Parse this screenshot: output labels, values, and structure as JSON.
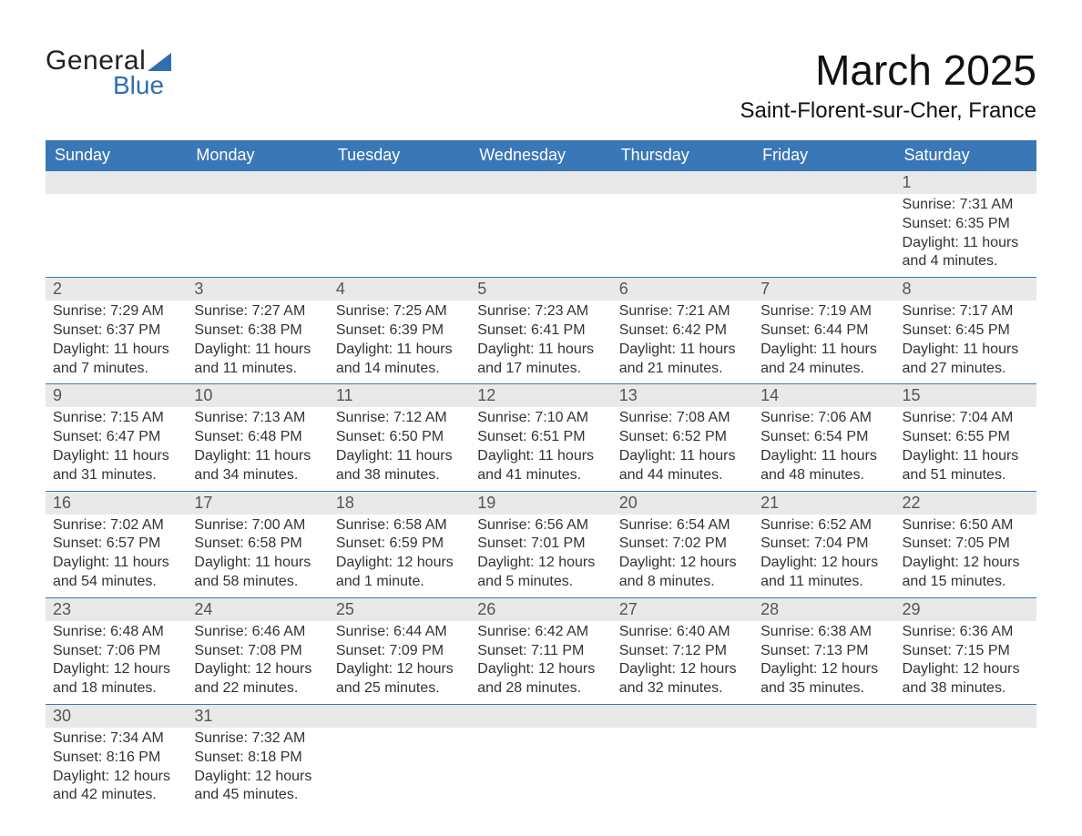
{
  "logo": {
    "word1": "General",
    "word2": "Blue",
    "accent_color": "#2f6fb0"
  },
  "title": "March 2025",
  "location": "Saint-Florent-sur-Cher, France",
  "header_bg": "#3a77b7",
  "header_text": "#ffffff",
  "daynum_bg": "#e9e9e9",
  "border_color": "#3a77b7",
  "weekdays": [
    "Sunday",
    "Monday",
    "Tuesday",
    "Wednesday",
    "Thursday",
    "Friday",
    "Saturday"
  ],
  "weeks": [
    [
      null,
      null,
      null,
      null,
      null,
      null,
      {
        "n": "1",
        "sunrise": "7:31 AM",
        "sunset": "6:35 PM",
        "daylight": "11 hours and 4 minutes."
      }
    ],
    [
      {
        "n": "2",
        "sunrise": "7:29 AM",
        "sunset": "6:37 PM",
        "daylight": "11 hours and 7 minutes."
      },
      {
        "n": "3",
        "sunrise": "7:27 AM",
        "sunset": "6:38 PM",
        "daylight": "11 hours and 11 minutes."
      },
      {
        "n": "4",
        "sunrise": "7:25 AM",
        "sunset": "6:39 PM",
        "daylight": "11 hours and 14 minutes."
      },
      {
        "n": "5",
        "sunrise": "7:23 AM",
        "sunset": "6:41 PM",
        "daylight": "11 hours and 17 minutes."
      },
      {
        "n": "6",
        "sunrise": "7:21 AM",
        "sunset": "6:42 PM",
        "daylight": "11 hours and 21 minutes."
      },
      {
        "n": "7",
        "sunrise": "7:19 AM",
        "sunset": "6:44 PM",
        "daylight": "11 hours and 24 minutes."
      },
      {
        "n": "8",
        "sunrise": "7:17 AM",
        "sunset": "6:45 PM",
        "daylight": "11 hours and 27 minutes."
      }
    ],
    [
      {
        "n": "9",
        "sunrise": "7:15 AM",
        "sunset": "6:47 PM",
        "daylight": "11 hours and 31 minutes."
      },
      {
        "n": "10",
        "sunrise": "7:13 AM",
        "sunset": "6:48 PM",
        "daylight": "11 hours and 34 minutes."
      },
      {
        "n": "11",
        "sunrise": "7:12 AM",
        "sunset": "6:50 PM",
        "daylight": "11 hours and 38 minutes."
      },
      {
        "n": "12",
        "sunrise": "7:10 AM",
        "sunset": "6:51 PM",
        "daylight": "11 hours and 41 minutes."
      },
      {
        "n": "13",
        "sunrise": "7:08 AM",
        "sunset": "6:52 PM",
        "daylight": "11 hours and 44 minutes."
      },
      {
        "n": "14",
        "sunrise": "7:06 AM",
        "sunset": "6:54 PM",
        "daylight": "11 hours and 48 minutes."
      },
      {
        "n": "15",
        "sunrise": "7:04 AM",
        "sunset": "6:55 PM",
        "daylight": "11 hours and 51 minutes."
      }
    ],
    [
      {
        "n": "16",
        "sunrise": "7:02 AM",
        "sunset": "6:57 PM",
        "daylight": "11 hours and 54 minutes."
      },
      {
        "n": "17",
        "sunrise": "7:00 AM",
        "sunset": "6:58 PM",
        "daylight": "11 hours and 58 minutes."
      },
      {
        "n": "18",
        "sunrise": "6:58 AM",
        "sunset": "6:59 PM",
        "daylight": "12 hours and 1 minute."
      },
      {
        "n": "19",
        "sunrise": "6:56 AM",
        "sunset": "7:01 PM",
        "daylight": "12 hours and 5 minutes."
      },
      {
        "n": "20",
        "sunrise": "6:54 AM",
        "sunset": "7:02 PM",
        "daylight": "12 hours and 8 minutes."
      },
      {
        "n": "21",
        "sunrise": "6:52 AM",
        "sunset": "7:04 PM",
        "daylight": "12 hours and 11 minutes."
      },
      {
        "n": "22",
        "sunrise": "6:50 AM",
        "sunset": "7:05 PM",
        "daylight": "12 hours and 15 minutes."
      }
    ],
    [
      {
        "n": "23",
        "sunrise": "6:48 AM",
        "sunset": "7:06 PM",
        "daylight": "12 hours and 18 minutes."
      },
      {
        "n": "24",
        "sunrise": "6:46 AM",
        "sunset": "7:08 PM",
        "daylight": "12 hours and 22 minutes."
      },
      {
        "n": "25",
        "sunrise": "6:44 AM",
        "sunset": "7:09 PM",
        "daylight": "12 hours and 25 minutes."
      },
      {
        "n": "26",
        "sunrise": "6:42 AM",
        "sunset": "7:11 PM",
        "daylight": "12 hours and 28 minutes."
      },
      {
        "n": "27",
        "sunrise": "6:40 AM",
        "sunset": "7:12 PM",
        "daylight": "12 hours and 32 minutes."
      },
      {
        "n": "28",
        "sunrise": "6:38 AM",
        "sunset": "7:13 PM",
        "daylight": "12 hours and 35 minutes."
      },
      {
        "n": "29",
        "sunrise": "6:36 AM",
        "sunset": "7:15 PM",
        "daylight": "12 hours and 38 minutes."
      }
    ],
    [
      {
        "n": "30",
        "sunrise": "7:34 AM",
        "sunset": "8:16 PM",
        "daylight": "12 hours and 42 minutes."
      },
      {
        "n": "31",
        "sunrise": "7:32 AM",
        "sunset": "8:18 PM",
        "daylight": "12 hours and 45 minutes."
      },
      null,
      null,
      null,
      null,
      null
    ]
  ],
  "labels": {
    "sunrise": "Sunrise: ",
    "sunset": "Sunset: ",
    "daylight": "Daylight: "
  }
}
